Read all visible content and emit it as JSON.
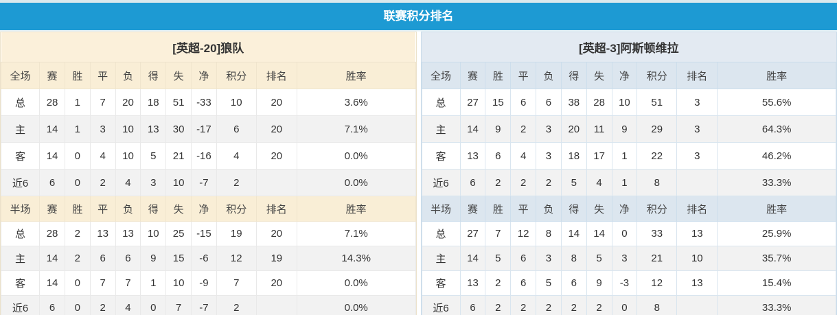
{
  "header": {
    "title": "联赛积分排名"
  },
  "colors": {
    "title_bar_blue": "#1d9ad3",
    "left_panel_cream": "#faefd8",
    "right_panel_blue": "#dde7f0",
    "points_red": "#e74c3c",
    "rank_blue": "#5090c8",
    "home_label_red": "#cc0000",
    "away_label_blue": "#0000a0",
    "alt_row_gray": "#f2f2f2"
  },
  "tables": [
    {
      "team": "[英超-20]狼队",
      "sections": [
        {
          "scope_label": "全场",
          "columns": [
            "赛",
            "胜",
            "平",
            "负",
            "得",
            "失",
            "净",
            "积分",
            "排名",
            "胜率"
          ],
          "rows": [
            {
              "label": "总",
              "type": "total",
              "stats": [
                "28",
                "1",
                "7",
                "20",
                "18",
                "51",
                "-33"
              ],
              "points": "10",
              "rank": "20",
              "win_rate": "3.6%"
            },
            {
              "label": "主",
              "type": "home",
              "stats": [
                "14",
                "1",
                "3",
                "10",
                "13",
                "30",
                "-17"
              ],
              "points": "6",
              "rank": "20",
              "win_rate": "7.1%"
            },
            {
              "label": "客",
              "type": "away",
              "stats": [
                "14",
                "0",
                "4",
                "10",
                "5",
                "21",
                "-16"
              ],
              "points": "4",
              "rank": "20",
              "win_rate": "0.0%"
            },
            {
              "label": "近6",
              "type": "recent",
              "stats": [
                "6",
                "0",
                "2",
                "4",
                "3",
                "10",
                "-7"
              ],
              "points": "2",
              "rank": "",
              "win_rate": "0.0%"
            }
          ]
        },
        {
          "scope_label": "半场",
          "columns": [
            "赛",
            "胜",
            "平",
            "负",
            "得",
            "失",
            "净",
            "积分",
            "排名",
            "胜率"
          ],
          "rows": [
            {
              "label": "总",
              "type": "total",
              "stats": [
                "28",
                "2",
                "13",
                "13",
                "10",
                "25",
                "-15"
              ],
              "points": "19",
              "rank": "20",
              "win_rate": "7.1%"
            },
            {
              "label": "主",
              "type": "home",
              "stats": [
                "14",
                "2",
                "6",
                "6",
                "9",
                "15",
                "-6"
              ],
              "points": "12",
              "rank": "19",
              "win_rate": "14.3%"
            },
            {
              "label": "客",
              "type": "away",
              "stats": [
                "14",
                "0",
                "7",
                "7",
                "1",
                "10",
                "-9"
              ],
              "points": "7",
              "rank": "20",
              "win_rate": "0.0%"
            },
            {
              "label": "近6",
              "type": "recent",
              "stats": [
                "6",
                "0",
                "2",
                "4",
                "0",
                "7",
                "-7"
              ],
              "points": "2",
              "rank": "",
              "win_rate": "0.0%"
            }
          ]
        }
      ]
    },
    {
      "team": "[英超-3]阿斯顿维拉",
      "sections": [
        {
          "scope_label": "全场",
          "columns": [
            "赛",
            "胜",
            "平",
            "负",
            "得",
            "失",
            "净",
            "积分",
            "排名",
            "胜率"
          ],
          "rows": [
            {
              "label": "总",
              "type": "total",
              "stats": [
                "27",
                "15",
                "6",
                "6",
                "38",
                "28",
                "10"
              ],
              "points": "51",
              "rank": "3",
              "win_rate": "55.6%"
            },
            {
              "label": "主",
              "type": "home",
              "stats": [
                "14",
                "9",
                "2",
                "3",
                "20",
                "11",
                "9"
              ],
              "points": "29",
              "rank": "3",
              "win_rate": "64.3%"
            },
            {
              "label": "客",
              "type": "away",
              "stats": [
                "13",
                "6",
                "4",
                "3",
                "18",
                "17",
                "1"
              ],
              "points": "22",
              "rank": "3",
              "win_rate": "46.2%"
            },
            {
              "label": "近6",
              "type": "recent",
              "stats": [
                "6",
                "2",
                "2",
                "2",
                "5",
                "4",
                "1"
              ],
              "points": "8",
              "rank": "",
              "win_rate": "33.3%"
            }
          ]
        },
        {
          "scope_label": "半场",
          "columns": [
            "赛",
            "胜",
            "平",
            "负",
            "得",
            "失",
            "净",
            "积分",
            "排名",
            "胜率"
          ],
          "rows": [
            {
              "label": "总",
              "type": "total",
              "stats": [
                "27",
                "7",
                "12",
                "8",
                "14",
                "14",
                "0"
              ],
              "points": "33",
              "rank": "13",
              "win_rate": "25.9%"
            },
            {
              "label": "主",
              "type": "home",
              "stats": [
                "14",
                "5",
                "6",
                "3",
                "8",
                "5",
                "3"
              ],
              "points": "21",
              "rank": "10",
              "win_rate": "35.7%"
            },
            {
              "label": "客",
              "type": "away",
              "stats": [
                "13",
                "2",
                "6",
                "5",
                "6",
                "9",
                "-3"
              ],
              "points": "12",
              "rank": "13",
              "win_rate": "15.4%"
            },
            {
              "label": "近6",
              "type": "recent",
              "stats": [
                "6",
                "2",
                "2",
                "2",
                "2",
                "2",
                "0"
              ],
              "points": "8",
              "rank": "",
              "win_rate": "33.3%"
            }
          ]
        }
      ]
    }
  ]
}
